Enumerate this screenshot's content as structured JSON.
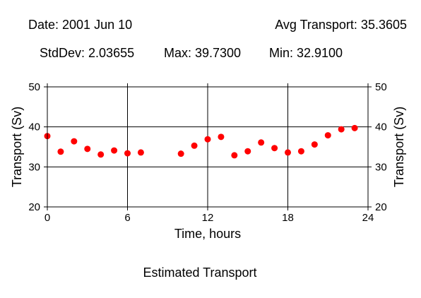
{
  "header": {
    "date": "Date: 2001 Jun 10",
    "avg": "Avg Transport: 35.3605",
    "stddev": "StdDev: 2.03655",
    "max": "Max: 39.7300",
    "min": "Min: 32.9100"
  },
  "footer": {
    "caption": "Estimated Transport"
  },
  "colors": {
    "point": "#ff0000",
    "grid": "#000000",
    "background": "#ffffff"
  },
  "chart_data": {
    "type": "scatter",
    "title": "",
    "xlabel": "Time, hours",
    "ylabel": "Transport (Sv)",
    "xlim": [
      0,
      24
    ],
    "ylim": [
      20,
      50
    ],
    "xticks": [
      0,
      6,
      12,
      18,
      24
    ],
    "yticks": [
      20,
      30,
      40,
      50
    ],
    "grid": true,
    "legend": "none",
    "series": [
      {
        "x": [
          0,
          1,
          2,
          3,
          4,
          5,
          6,
          7,
          10,
          11,
          12,
          13,
          14,
          15,
          16,
          17,
          18,
          19,
          20,
          21,
          22,
          23
        ],
        "y": [
          37.7,
          33.8,
          36.4,
          34.5,
          33.1,
          34.1,
          33.4,
          33.6,
          33.3,
          35.3,
          36.9,
          37.5,
          32.9,
          33.9,
          36.1,
          34.7,
          33.6,
          33.9,
          35.6,
          37.9,
          39.4,
          39.7
        ]
      }
    ]
  }
}
